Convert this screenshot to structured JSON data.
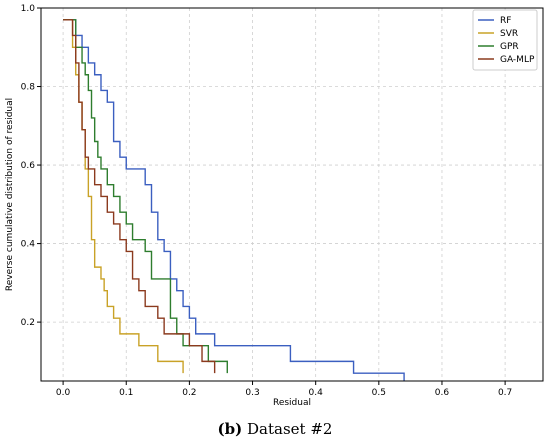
{
  "caption": {
    "label": "(b)",
    "text": "Dataset #2"
  },
  "chart_data": {
    "type": "line",
    "step": true,
    "xlabel": "Residual",
    "ylabel": "Reverse cumulative distribution of residual",
    "xlim": [
      -0.035,
      0.76
    ],
    "ylim": [
      0.05,
      1.0
    ],
    "xticks": [
      0.0,
      0.1,
      0.2,
      0.3,
      0.4,
      0.5,
      0.6,
      0.7
    ],
    "xtick_labels": [
      "0.0",
      "0.1",
      "0.2",
      "0.3",
      "0.4",
      "0.5",
      "0.6",
      "0.7"
    ],
    "yticks": [
      0.2,
      0.4,
      0.6,
      0.8,
      1.0
    ],
    "ytick_labels": [
      "0.2",
      "0.4",
      "0.6",
      "0.8",
      "1.0"
    ],
    "grid": true,
    "legend_position": "top-right",
    "series": [
      {
        "name": "RF",
        "color": "#3b5fc0",
        "x": [
          0.0,
          0.01,
          0.02,
          0.03,
          0.04,
          0.05,
          0.06,
          0.07,
          0.08,
          0.09,
          0.1,
          0.12,
          0.13,
          0.14,
          0.15,
          0.16,
          0.17,
          0.18,
          0.19,
          0.2,
          0.21,
          0.24,
          0.36,
          0.46,
          0.54
        ],
        "y": [
          0.97,
          0.97,
          0.93,
          0.9,
          0.86,
          0.83,
          0.79,
          0.76,
          0.66,
          0.62,
          0.59,
          0.59,
          0.55,
          0.48,
          0.41,
          0.38,
          0.31,
          0.28,
          0.24,
          0.21,
          0.17,
          0.14,
          0.1,
          0.07,
          0.05
        ]
      },
      {
        "name": "SVR",
        "color": "#c9a227",
        "x": [
          0.0,
          0.01,
          0.015,
          0.02,
          0.025,
          0.03,
          0.035,
          0.04,
          0.045,
          0.05,
          0.06,
          0.065,
          0.07,
          0.08,
          0.09,
          0.12,
          0.15,
          0.19
        ],
        "y": [
          0.97,
          0.97,
          0.9,
          0.83,
          0.76,
          0.69,
          0.59,
          0.52,
          0.41,
          0.34,
          0.31,
          0.28,
          0.24,
          0.21,
          0.17,
          0.14,
          0.1,
          0.07
        ]
      },
      {
        "name": "GPR",
        "color": "#2e7d2e",
        "x": [
          0.0,
          0.01,
          0.02,
          0.03,
          0.035,
          0.04,
          0.045,
          0.05,
          0.055,
          0.06,
          0.07,
          0.08,
          0.09,
          0.1,
          0.11,
          0.13,
          0.14,
          0.17,
          0.18,
          0.19,
          0.23,
          0.26
        ],
        "y": [
          0.97,
          0.97,
          0.9,
          0.86,
          0.83,
          0.79,
          0.72,
          0.66,
          0.62,
          0.59,
          0.55,
          0.52,
          0.48,
          0.45,
          0.41,
          0.38,
          0.31,
          0.21,
          0.17,
          0.14,
          0.1,
          0.07
        ]
      },
      {
        "name": "GA-MLP",
        "color": "#8b3a1e",
        "x": [
          0.0,
          0.01,
          0.015,
          0.02,
          0.025,
          0.03,
          0.035,
          0.04,
          0.05,
          0.06,
          0.07,
          0.08,
          0.09,
          0.1,
          0.11,
          0.12,
          0.13,
          0.15,
          0.16,
          0.2,
          0.22,
          0.24
        ],
        "y": [
          0.97,
          0.97,
          0.93,
          0.86,
          0.76,
          0.69,
          0.62,
          0.59,
          0.55,
          0.52,
          0.48,
          0.45,
          0.41,
          0.38,
          0.31,
          0.28,
          0.24,
          0.21,
          0.17,
          0.14,
          0.1,
          0.07
        ]
      }
    ]
  }
}
